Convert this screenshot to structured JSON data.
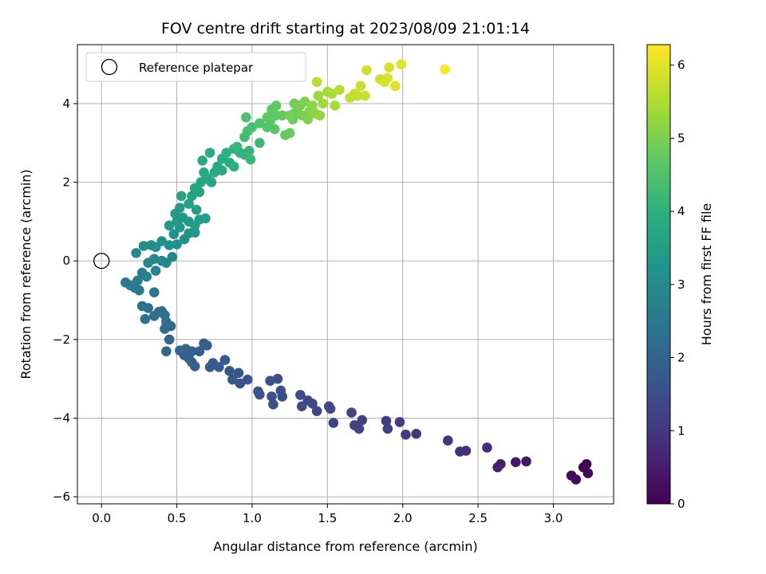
{
  "chart_data": {
    "type": "scatter",
    "title": "FOV centre drift starting at 2023/08/09 21:01:14",
    "xlabel": "Angular distance from reference (arcmin)",
    "ylabel": "Rotation from reference (arcmin)",
    "xlim": [
      -0.16,
      3.4
    ],
    "ylim": [
      -6.18,
      5.5
    ],
    "xticks": [
      0.0,
      0.5,
      1.0,
      1.5,
      2.0,
      2.5,
      3.0
    ],
    "xtick_labels": [
      "0.0",
      "0.5",
      "1.0",
      "1.5",
      "2.0",
      "2.5",
      "3.0"
    ],
    "yticks": [
      -6,
      -4,
      -2,
      0,
      2,
      4
    ],
    "ytick_labels": [
      "−6",
      "−4",
      "−2",
      "0",
      "2",
      "4"
    ],
    "grid": true,
    "legend": {
      "position": "top-left",
      "label": "Reference platepar"
    },
    "reference_point": {
      "x": 0.0,
      "y": 0.0
    },
    "colorbar": {
      "label": "Hours from first FF file",
      "colormap": "viridis",
      "range": [
        0,
        6.28
      ],
      "ticks": [
        0,
        1,
        2,
        3,
        4,
        5,
        6
      ],
      "tick_labels": [
        "0",
        "1",
        "2",
        "3",
        "4",
        "5",
        "6"
      ]
    },
    "points": [
      [
        3.2,
        -5.25,
        0.05
      ],
      [
        3.22,
        -5.17,
        0.08
      ],
      [
        3.23,
        -5.4,
        0.12
      ],
      [
        3.12,
        -5.46,
        0.15
      ],
      [
        3.15,
        -5.56,
        0.18
      ],
      [
        2.82,
        -5.1,
        0.4
      ],
      [
        2.75,
        -5.12,
        0.45
      ],
      [
        2.65,
        -5.17,
        0.5
      ],
      [
        2.63,
        -5.25,
        0.55
      ],
      [
        2.56,
        -4.75,
        0.75
      ],
      [
        2.42,
        -4.83,
        0.85
      ],
      [
        2.38,
        -4.85,
        0.9
      ],
      [
        2.3,
        -4.57,
        0.95
      ],
      [
        2.09,
        -4.4,
        1.05
      ],
      [
        2.02,
        -4.42,
        1.1
      ],
      [
        1.98,
        -4.1,
        1.12
      ],
      [
        1.9,
        -4.27,
        1.15
      ],
      [
        1.89,
        -4.07,
        1.18
      ],
      [
        1.73,
        -4.05,
        1.2
      ],
      [
        1.71,
        -4.27,
        1.22
      ],
      [
        1.68,
        -4.18,
        1.25
      ],
      [
        1.66,
        -3.86,
        1.27
      ],
      [
        1.54,
        -4.12,
        1.3
      ],
      [
        1.52,
        -3.76,
        1.32
      ],
      [
        1.51,
        -3.7,
        1.34
      ],
      [
        1.43,
        -3.82,
        1.36
      ],
      [
        1.4,
        -3.63,
        1.38
      ],
      [
        1.37,
        -3.55,
        1.4
      ],
      [
        1.32,
        -3.41,
        1.42
      ],
      [
        1.33,
        -3.7,
        1.45
      ],
      [
        1.2,
        -3.45,
        1.48
      ],
      [
        1.19,
        -3.3,
        1.5
      ],
      [
        1.17,
        -3.0,
        1.52
      ],
      [
        1.14,
        -3.65,
        1.54
      ],
      [
        1.12,
        -3.05,
        1.56
      ],
      [
        1.13,
        -3.45,
        1.58
      ],
      [
        1.05,
        -3.4,
        1.6
      ],
      [
        1.04,
        -3.32,
        1.62
      ],
      [
        0.97,
        -3.02,
        1.64
      ],
      [
        0.92,
        -3.12,
        1.66
      ],
      [
        0.91,
        -2.85,
        1.68
      ],
      [
        0.87,
        -3.02,
        1.7
      ],
      [
        0.85,
        -2.8,
        1.72
      ],
      [
        0.82,
        -2.52,
        1.74
      ],
      [
        0.78,
        -2.7,
        1.76
      ],
      [
        0.74,
        -2.6,
        1.78
      ],
      [
        0.72,
        -2.7,
        1.8
      ],
      [
        0.7,
        -2.15,
        1.82
      ],
      [
        0.68,
        -2.1,
        1.84
      ],
      [
        0.65,
        -2.3,
        1.86
      ],
      [
        0.62,
        -2.68,
        1.88
      ],
      [
        0.6,
        -2.58,
        1.9
      ],
      [
        0.6,
        -2.3,
        1.92
      ],
      [
        0.58,
        -2.48,
        1.94
      ],
      [
        0.55,
        -2.4,
        1.96
      ],
      [
        0.56,
        -2.24,
        1.98
      ],
      [
        0.52,
        -2.28,
        2.0
      ],
      [
        0.45,
        -2.0,
        2.05
      ],
      [
        0.43,
        -2.3,
        2.1
      ],
      [
        0.46,
        -1.66,
        2.15
      ],
      [
        0.42,
        -1.73,
        2.2
      ],
      [
        0.43,
        -1.55,
        2.22
      ],
      [
        0.4,
        -1.28,
        2.25
      ],
      [
        0.38,
        -1.3,
        2.28
      ],
      [
        0.42,
        -1.38,
        2.3
      ],
      [
        0.35,
        -1.4,
        2.32
      ],
      [
        0.31,
        -1.2,
        2.35
      ],
      [
        0.29,
        -1.48,
        2.38
      ],
      [
        0.27,
        -1.15,
        2.4
      ],
      [
        0.35,
        -0.8,
        2.45
      ],
      [
        0.25,
        -0.75,
        2.5
      ],
      [
        0.22,
        -0.68,
        2.55
      ],
      [
        0.19,
        -0.62,
        2.6
      ],
      [
        0.16,
        -0.55,
        2.62
      ],
      [
        0.24,
        -0.5,
        2.65
      ],
      [
        0.3,
        -0.4,
        2.7
      ],
      [
        0.27,
        -0.3,
        2.72
      ],
      [
        0.36,
        -0.25,
        2.75
      ],
      [
        0.31,
        -0.05,
        2.8
      ],
      [
        0.35,
        0.05,
        2.85
      ],
      [
        0.4,
        0.0,
        2.9
      ],
      [
        0.43,
        -0.05,
        2.92
      ],
      [
        0.47,
        0.1,
        2.95
      ],
      [
        0.23,
        0.2,
        3.0
      ],
      [
        0.28,
        0.38,
        3.02
      ],
      [
        0.33,
        0.4,
        3.05
      ],
      [
        0.36,
        0.35,
        3.08
      ],
      [
        0.4,
        0.5,
        3.1
      ],
      [
        0.45,
        0.4,
        3.12
      ],
      [
        0.5,
        0.42,
        3.15
      ],
      [
        0.55,
        0.55,
        3.18
      ],
      [
        0.48,
        0.68,
        3.2
      ],
      [
        0.52,
        0.85,
        3.22
      ],
      [
        0.58,
        0.7,
        3.25
      ],
      [
        0.62,
        0.72,
        3.28
      ],
      [
        0.45,
        0.9,
        3.3
      ],
      [
        0.5,
        1.0,
        3.32
      ],
      [
        0.54,
        1.1,
        3.35
      ],
      [
        0.49,
        1.2,
        3.38
      ],
      [
        0.52,
        1.35,
        3.4
      ],
      [
        0.58,
        1.0,
        3.42
      ],
      [
        0.62,
        0.9,
        3.45
      ],
      [
        0.65,
        1.05,
        3.48
      ],
      [
        0.69,
        1.08,
        3.5
      ],
      [
        0.63,
        1.3,
        3.52
      ],
      [
        0.58,
        1.45,
        3.55
      ],
      [
        0.53,
        1.65,
        3.58
      ],
      [
        0.6,
        1.65,
        3.6
      ],
      [
        0.65,
        1.75,
        3.62
      ],
      [
        0.62,
        1.85,
        3.65
      ],
      [
        0.66,
        2.0,
        3.68
      ],
      [
        0.7,
        2.1,
        3.7
      ],
      [
        0.73,
        2.0,
        3.72
      ],
      [
        0.68,
        2.25,
        3.75
      ],
      [
        0.75,
        2.25,
        3.78
      ],
      [
        0.8,
        2.3,
        3.8
      ],
      [
        0.77,
        2.4,
        3.82
      ],
      [
        0.67,
        2.55,
        3.85
      ],
      [
        0.72,
        2.75,
        3.88
      ],
      [
        0.8,
        2.6,
        3.9
      ],
      [
        0.85,
        2.5,
        3.92
      ],
      [
        0.88,
        2.4,
        3.95
      ],
      [
        0.83,
        2.75,
        3.98
      ],
      [
        0.88,
        2.85,
        4.0
      ],
      [
        0.92,
        2.75,
        4.02
      ],
      [
        0.95,
        2.7,
        4.05
      ],
      [
        0.98,
        2.8,
        4.1
      ],
      [
        0.9,
        2.9,
        4.15
      ],
      [
        0.99,
        2.58,
        4.2
      ],
      [
        1.05,
        3.0,
        4.25
      ],
      [
        0.95,
        3.15,
        4.3
      ],
      [
        0.97,
        3.3,
        4.35
      ],
      [
        1.0,
        3.4,
        4.4
      ],
      [
        0.96,
        3.65,
        4.45
      ],
      [
        1.05,
        3.5,
        4.5
      ],
      [
        1.1,
        3.4,
        4.55
      ],
      [
        1.15,
        3.35,
        4.6
      ],
      [
        1.12,
        3.55,
        4.62
      ],
      [
        1.16,
        3.7,
        4.65
      ],
      [
        1.1,
        3.65,
        4.68
      ],
      [
        1.13,
        3.85,
        4.7
      ],
      [
        1.16,
        3.95,
        4.72
      ],
      [
        1.2,
        3.7,
        4.75
      ],
      [
        1.22,
        3.2,
        4.78
      ],
      [
        1.25,
        3.25,
        4.8
      ],
      [
        1.27,
        3.6,
        4.82
      ],
      [
        1.28,
        3.75,
        4.85
      ],
      [
        1.3,
        3.8,
        4.88
      ],
      [
        1.25,
        3.7,
        4.9
      ],
      [
        1.28,
        4.0,
        4.92
      ],
      [
        1.32,
        3.95,
        4.95
      ],
      [
        1.35,
        4.05,
        4.98
      ],
      [
        1.33,
        3.7,
        5.0
      ],
      [
        1.37,
        3.6,
        5.05
      ],
      [
        1.38,
        3.8,
        5.1
      ],
      [
        1.4,
        3.95,
        5.15
      ],
      [
        1.42,
        3.75,
        5.2
      ],
      [
        1.45,
        3.7,
        5.25
      ],
      [
        1.44,
        4.2,
        5.3
      ],
      [
        1.47,
        4.0,
        5.35
      ],
      [
        1.5,
        4.3,
        5.4
      ],
      [
        1.55,
        3.95,
        5.45
      ],
      [
        1.53,
        4.25,
        5.5
      ],
      [
        1.58,
        4.35,
        5.55
      ],
      [
        1.43,
        4.55,
        5.6
      ],
      [
        1.65,
        4.15,
        5.65
      ],
      [
        1.68,
        4.25,
        5.7
      ],
      [
        1.7,
        4.2,
        5.72
      ],
      [
        1.72,
        4.45,
        5.75
      ],
      [
        1.75,
        4.2,
        5.78
      ],
      [
        1.76,
        4.85,
        5.8
      ],
      [
        1.85,
        4.62,
        5.85
      ],
      [
        1.88,
        4.55,
        5.88
      ],
      [
        1.9,
        4.65,
        5.9
      ],
      [
        1.91,
        4.92,
        5.92
      ],
      [
        1.95,
        4.45,
        5.95
      ],
      [
        1.99,
        5.0,
        6.0
      ],
      [
        2.28,
        4.87,
        6.25
      ]
    ]
  }
}
